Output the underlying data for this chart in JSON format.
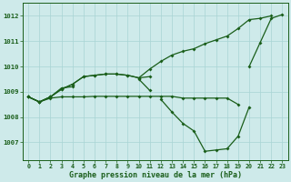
{
  "title": "Graphe pression niveau de la mer (hPa)",
  "hours": [
    0,
    1,
    2,
    3,
    4,
    5,
    6,
    7,
    8,
    9,
    10,
    11,
    12,
    13,
    14,
    15,
    16,
    17,
    18,
    19,
    20,
    21,
    22,
    23
  ],
  "ylim": [
    1006.3,
    1012.5
  ],
  "yticks": [
    1007,
    1008,
    1009,
    1010,
    1011,
    1012
  ],
  "background_color": "#ceeaea",
  "grid_color": "#a8d4d4",
  "line_color": "#1a5e1a",
  "curve_rising": [
    1008.8,
    1008.6,
    1008.8,
    1009.1,
    1009.3,
    1009.6,
    1009.65,
    1009.7,
    1009.7,
    1009.65,
    1009.55,
    1009.9,
    1010.2,
    1010.45,
    1010.6,
    1010.7,
    1010.9,
    1011.05,
    1011.2,
    1011.5,
    1011.85,
    1011.9,
    1012.0,
    null
  ],
  "curve_upper": [
    1008.8,
    1008.6,
    1008.8,
    1009.1,
    1009.3,
    1009.6,
    1009.65,
    1009.7,
    1009.7,
    1009.65,
    1009.55,
    1009.6,
    null,
    null,
    null,
    null,
    null,
    null,
    null,
    null,
    null,
    null,
    null,
    null
  ],
  "curve_mid_up": [
    1008.8,
    1008.6,
    1008.8,
    1009.15,
    1009.2,
    null,
    null,
    null,
    null,
    null,
    1009.5,
    1009.05,
    null,
    null,
    null,
    null,
    null,
    null,
    null,
    null,
    null,
    null,
    null,
    null
  ],
  "curve_flat": [
    1008.8,
    1008.6,
    1008.75,
    1008.8,
    1008.8,
    1008.8,
    1008.82,
    1008.82,
    1008.82,
    1008.82,
    1008.82,
    1008.82,
    1008.82,
    1008.82,
    1008.75,
    1008.75,
    1008.75,
    1008.75,
    1008.75,
    1008.5,
    null,
    null,
    null,
    null
  ],
  "curve_low": [
    null,
    null,
    null,
    null,
    null,
    null,
    null,
    null,
    null,
    null,
    null,
    null,
    1008.7,
    1008.2,
    1007.75,
    1007.45,
    1006.65,
    1006.7,
    1006.75,
    1007.25,
    1008.4,
    null,
    null,
    null
  ],
  "curve_v_bottom": [
    null,
    null,
    null,
    null,
    null,
    null,
    null,
    null,
    null,
    null,
    null,
    null,
    null,
    null,
    null,
    1007.5,
    1006.65,
    1006.7,
    1006.75,
    1007.25,
    null,
    null,
    null,
    null
  ],
  "curve_end": [
    null,
    null,
    null,
    null,
    null,
    null,
    null,
    null,
    null,
    null,
    null,
    null,
    null,
    null,
    null,
    null,
    null,
    null,
    null,
    null,
    1010.0,
    1010.95,
    1011.9,
    1012.05
  ]
}
